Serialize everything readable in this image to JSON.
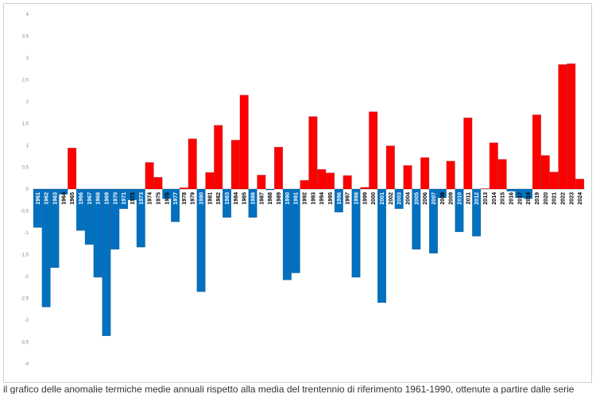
{
  "chart_data": {
    "type": "bar",
    "title": "",
    "xlabel": "",
    "ylabel": "",
    "ylim": [
      -4,
      4
    ],
    "yticks": [
      "4",
      "3,5",
      "3",
      "2,5",
      "2",
      "1,5",
      "1",
      "0,5",
      "0",
      "-0,5",
      "-1",
      "-1,5",
      "-2",
      "-2,5",
      "-3",
      "-3,5",
      "-4"
    ],
    "grid": false,
    "legend": "none",
    "colors": {
      "positive": "#ff0000",
      "negative": "#0070c0",
      "label_on_blue": "#ffffff",
      "label_on_white": "#000000"
    },
    "categories": [
      "1961",
      "1962",
      "1963",
      "1964",
      "1965",
      "1966",
      "1967",
      "1968",
      "1969",
      "1970",
      "1971",
      "1972",
      "1973",
      "1974",
      "1975",
      "1976",
      "1977",
      "1978",
      "1979",
      "1980",
      "1981",
      "1982",
      "1983",
      "1984",
      "1985",
      "1986",
      "1987",
      "1988",
      "1989",
      "1990",
      "1991",
      "1992",
      "1993",
      "1994",
      "1995",
      "1996",
      "1997",
      "1998",
      "1999",
      "2000",
      "2001",
      "2002",
      "2003",
      "2004",
      "2005",
      "2006",
      "2007",
      "2008",
      "2009",
      "2010",
      "2011",
      "2012",
      "2013",
      "2014",
      "2015",
      "2016",
      "2017",
      "2018",
      "2019",
      "2020",
      "2021",
      "2022",
      "2023",
      "2024"
    ],
    "values": [
      -0.88,
      -2.7,
      -1.8,
      -0.12,
      0.94,
      -0.95,
      -1.27,
      -2.02,
      -3.36,
      -1.38,
      -0.45,
      -0.25,
      -1.33,
      0.61,
      0.27,
      -0.22,
      -0.75,
      0.03,
      1.15,
      -2.35,
      0.38,
      1.46,
      -0.65,
      1.12,
      2.15,
      -0.65,
      0.32,
      -0.02,
      0.96,
      -2.08,
      -1.92,
      0.2,
      1.66,
      0.45,
      0.37,
      -0.53,
      0.31,
      -2.02,
      0.04,
      1.77,
      -2.6,
      0.99,
      -0.45,
      0.54,
      -1.38,
      0.72,
      -1.47,
      -0.2,
      0.64,
      -0.98,
      1.63,
      -1.08,
      0.01,
      1.06,
      0.68,
      -0.05,
      -0.2,
      -0.22,
      1.7,
      0.77,
      0.39,
      2.85,
      2.87,
      0.23
    ]
  },
  "caption": "il grafico delle anomalie termiche medie annuali rispetto alla media del trentennio di riferimento 1961-1990, ottenute a partire dalle serie"
}
